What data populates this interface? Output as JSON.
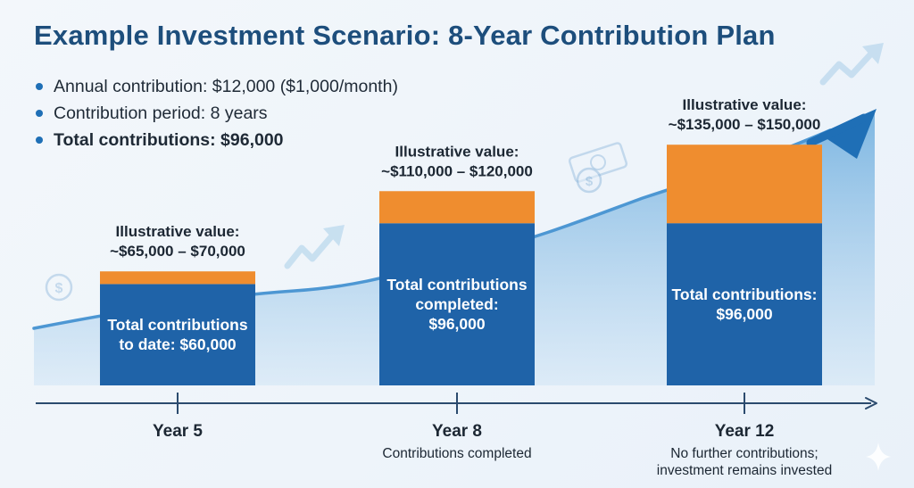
{
  "title": "Example Investment Scenario: 8-Year Contribution Plan",
  "bullets": [
    "Annual contribution: $12,000 ($1,000/month)",
    "Contribution period: 8 years",
    "Total contributions: $96,000"
  ],
  "colors": {
    "title": "#1d4e7c",
    "contributions": "#1f63a8",
    "growth": "#ef8d2f",
    "area": "#8cc1e6",
    "axis": "#2b4b6e",
    "text": "#1c2733"
  },
  "icons": [
    "dollar-coin-icon",
    "trend-arrow-icon",
    "banknote-icon",
    "sparkle-icon"
  ],
  "chart_data": {
    "type": "bar",
    "stacked": true,
    "categories": [
      "Year 5",
      "Year 8",
      "Year 12"
    ],
    "series": [
      {
        "values": [
          60000,
          96000,
          96000
        ]
      },
      {
        "values": [
          7500,
          19000,
          46500
        ]
      }
    ],
    "value_labels": [
      "Illustrative value:\n~$65,000 – $70,000",
      "Illustrative value:\n~$110,000 – $120,000",
      "Illustrative value:\n~$135,000 – $150,000"
    ],
    "inner_labels": [
      "Total contributions\nto date: $60,000",
      "Total contributions\ncompleted:\n$96,000",
      "Total contributions:\n$96,000"
    ],
    "sub_labels": [
      "",
      "Contributions completed",
      "No further contributions;\ninvestment remains invested"
    ],
    "ylim": [
      0,
      150000
    ],
    "grid": false,
    "legend": "none"
  }
}
